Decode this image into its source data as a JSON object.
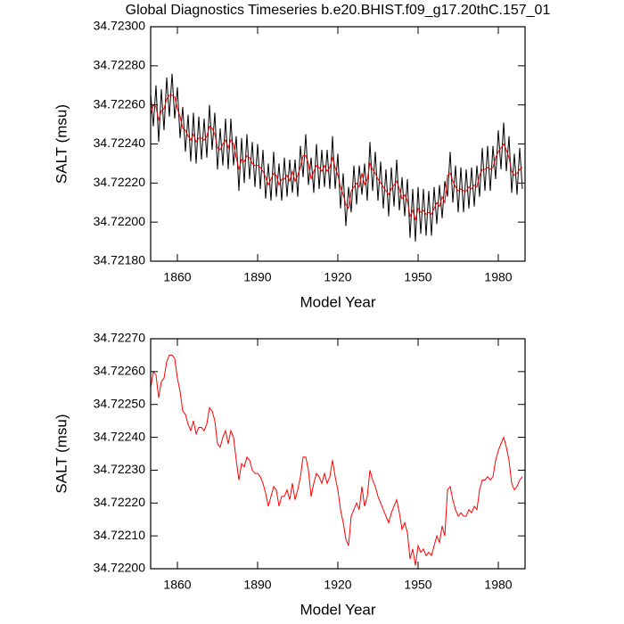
{
  "chart_data": [
    {
      "type": "line",
      "title": "Global Diagnostics Timeseries b.e20.BHIST.f09_g17.20thC.157_01",
      "xlabel": "Model Year",
      "ylabel": "SALT (msu)",
      "x": [
        1850,
        1851,
        1852,
        1853,
        1854,
        1855,
        1856,
        1857,
        1858,
        1859,
        1860,
        1861,
        1862,
        1863,
        1864,
        1865,
        1866,
        1867,
        1868,
        1869,
        1870,
        1871,
        1872,
        1873,
        1874,
        1875,
        1876,
        1877,
        1878,
        1879,
        1880,
        1881,
        1882,
        1883,
        1884,
        1885,
        1886,
        1887,
        1888,
        1889,
        1890,
        1891,
        1892,
        1893,
        1894,
        1895,
        1896,
        1897,
        1898,
        1899,
        1900,
        1901,
        1902,
        1903,
        1904,
        1905,
        1906,
        1907,
        1908,
        1909,
        1910,
        1911,
        1912,
        1913,
        1914,
        1915,
        1916,
        1917,
        1918,
        1919,
        1920,
        1921,
        1922,
        1923,
        1924,
        1925,
        1926,
        1927,
        1928,
        1929,
        1930,
        1931,
        1932,
        1933,
        1934,
        1935,
        1936,
        1937,
        1938,
        1939,
        1940,
        1941,
        1942,
        1943,
        1944,
        1945,
        1946,
        1947,
        1948,
        1949,
        1950,
        1951,
        1952,
        1953,
        1954,
        1955,
        1956,
        1957,
        1958,
        1959,
        1960,
        1961,
        1962,
        1963,
        1964,
        1965,
        1966,
        1967,
        1968,
        1969,
        1970,
        1971,
        1972,
        1973,
        1974,
        1975,
        1976,
        1977,
        1978,
        1979,
        1980,
        1981,
        1982,
        1983,
        1984,
        1985,
        1986,
        1987,
        1988,
        1989
      ],
      "series": [
        {
          "color": "#000000",
          "values": [
            34.72266,
            34.72249,
            34.7227,
            34.72241,
            34.72268,
            34.72247,
            34.72274,
            34.72254,
            34.72276,
            34.72253,
            34.72269,
            34.72243,
            34.72259,
            34.72236,
            34.72255,
            34.72231,
            34.72256,
            34.7223,
            34.72254,
            34.72232,
            34.72253,
            34.72233,
            34.7226,
            34.72237,
            34.72256,
            34.72227,
            34.72248,
            34.72229,
            34.72253,
            34.72227,
            34.72253,
            34.72229,
            34.72244,
            34.72216,
            34.72243,
            34.7222,
            34.72245,
            34.72222,
            34.72241,
            34.72218,
            34.7224,
            34.72217,
            34.72237,
            34.72212,
            34.7223,
            34.72211,
            34.72236,
            34.72213,
            34.7223,
            34.72211,
            34.72233,
            34.72213,
            34.72232,
            34.72215,
            34.72232,
            34.72213,
            34.72239,
            34.72223,
            34.72245,
            34.72219,
            34.72233,
            34.72215,
            34.7224,
            34.72217,
            34.72237,
            34.72218,
            34.72237,
            34.72217,
            34.72244,
            34.72217,
            34.72235,
            34.72207,
            34.72225,
            34.72198,
            34.72218,
            34.72205,
            34.72229,
            34.72209,
            34.72229,
            34.72214,
            34.7223,
            34.72211,
            34.72241,
            34.72216,
            34.72236,
            34.72211,
            34.72231,
            34.72207,
            34.72227,
            34.72203,
            34.72228,
            34.72208,
            34.72232,
            34.72206,
            34.72223,
            34.72203,
            34.72222,
            34.72192,
            34.72217,
            34.7219,
            34.72218,
            34.72194,
            34.72217,
            34.72193,
            34.72216,
            34.72193,
            34.72218,
            34.72199,
            34.72219,
            34.72202,
            34.72221,
            34.72213,
            34.72236,
            34.7221,
            34.72229,
            34.72205,
            34.72228,
            34.72205,
            34.72227,
            34.72207,
            34.72228,
            34.72208,
            34.72229,
            34.72213,
            34.72238,
            34.72216,
            34.72239,
            34.72216,
            34.72239,
            34.72222,
            34.72247,
            34.72227,
            34.72251,
            34.72226,
            34.72244,
            34.72215,
            34.72235,
            34.72214,
            34.72238,
            34.72217
          ]
        },
        {
          "color": "#ff0000",
          "values": [
            34.72255,
            34.7226,
            34.72259,
            34.72252,
            34.72257,
            34.72258,
            34.72263,
            34.72265,
            34.72265,
            34.72264,
            34.72258,
            34.72254,
            34.72248,
            34.72247,
            34.72244,
            34.72242,
            34.72245,
            34.72241,
            34.72243,
            34.72243,
            34.72242,
            34.72244,
            34.72249,
            34.72248,
            34.72245,
            34.72238,
            34.72237,
            34.7224,
            34.72242,
            34.72238,
            34.72242,
            34.7224,
            34.72233,
            34.72227,
            34.72232,
            34.72231,
            34.72234,
            34.72233,
            34.7223,
            34.72229,
            34.72229,
            34.72228,
            34.72226,
            34.72223,
            34.72219,
            34.72222,
            34.72225,
            34.72224,
            34.72219,
            34.72222,
            34.72222,
            34.72224,
            34.72221,
            34.72226,
            34.72221,
            34.72224,
            34.72228,
            34.72234,
            34.72234,
            34.7223,
            34.72222,
            34.72226,
            34.72229,
            34.72228,
            34.72226,
            34.72229,
            34.72226,
            34.72228,
            34.72233,
            34.72228,
            34.72224,
            34.72218,
            34.72214,
            34.72209,
            34.72207,
            34.72216,
            34.72218,
            34.7222,
            34.72218,
            34.72225,
            34.72219,
            34.72222,
            34.7223,
            34.72227,
            34.72225,
            34.72222,
            34.7222,
            34.72218,
            34.72216,
            34.72214,
            34.72217,
            34.72219,
            34.72221,
            34.72217,
            34.72212,
            34.72214,
            34.72211,
            34.72203,
            34.72206,
            34.72201,
            34.72207,
            34.72205,
            34.72206,
            34.72204,
            34.72205,
            34.72204,
            34.72207,
            34.7221,
            34.72208,
            34.72213,
            34.7221,
            34.72224,
            34.72225,
            34.72221,
            34.72218,
            34.72216,
            34.72217,
            34.72216,
            34.72216,
            34.72218,
            34.72217,
            34.72219,
            34.72218,
            34.72224,
            34.72227,
            34.72227,
            34.72228,
            34.72227,
            34.72228,
            34.72233,
            34.72236,
            34.72238,
            34.7224,
            34.72237,
            34.72233,
            34.72226,
            34.72224,
            34.72225,
            34.72227,
            34.72228
          ]
        }
      ],
      "xlim": [
        1850,
        1990
      ],
      "xticks": [
        1860,
        1890,
        1920,
        1950,
        1980
      ],
      "ylim": [
        34.7218,
        34.723
      ],
      "yticks": [
        {
          "value": 34.7218,
          "label": "34.72180"
        },
        {
          "value": 34.722,
          "label": "34.72200"
        },
        {
          "value": 34.7222,
          "label": "34.72220"
        },
        {
          "value": 34.7224,
          "label": "34.72240"
        },
        {
          "value": 34.7226,
          "label": "34.72260"
        },
        {
          "value": 34.7228,
          "label": "34.72280"
        },
        {
          "value": 34.723,
          "label": "34.72300"
        }
      ]
    },
    {
      "type": "line",
      "xlabel": "Model Year",
      "ylabel": "SALT (msu)",
      "x": [
        1850,
        1851,
        1852,
        1853,
        1854,
        1855,
        1856,
        1857,
        1858,
        1859,
        1860,
        1861,
        1862,
        1863,
        1864,
        1865,
        1866,
        1867,
        1868,
        1869,
        1870,
        1871,
        1872,
        1873,
        1874,
        1875,
        1876,
        1877,
        1878,
        1879,
        1880,
        1881,
        1882,
        1883,
        1884,
        1885,
        1886,
        1887,
        1888,
        1889,
        1890,
        1891,
        1892,
        1893,
        1894,
        1895,
        1896,
        1897,
        1898,
        1899,
        1900,
        1901,
        1902,
        1903,
        1904,
        1905,
        1906,
        1907,
        1908,
        1909,
        1910,
        1911,
        1912,
        1913,
        1914,
        1915,
        1916,
        1917,
        1918,
        1919,
        1920,
        1921,
        1922,
        1923,
        1924,
        1925,
        1926,
        1927,
        1928,
        1929,
        1930,
        1931,
        1932,
        1933,
        1934,
        1935,
        1936,
        1937,
        1938,
        1939,
        1940,
        1941,
        1942,
        1943,
        1944,
        1945,
        1946,
        1947,
        1948,
        1949,
        1950,
        1951,
        1952,
        1953,
        1954,
        1955,
        1956,
        1957,
        1958,
        1959,
        1960,
        1961,
        1962,
        1963,
        1964,
        1965,
        1966,
        1967,
        1968,
        1969,
        1970,
        1971,
        1972,
        1973,
        1974,
        1975,
        1976,
        1977,
        1978,
        1979,
        1980,
        1981,
        1982,
        1983,
        1984,
        1985,
        1986,
        1987,
        1988,
        1989
      ],
      "series": [
        {
          "color": "#ff0000",
          "values": [
            34.72255,
            34.7226,
            34.72259,
            34.72252,
            34.72257,
            34.72258,
            34.72263,
            34.72265,
            34.72265,
            34.72264,
            34.72258,
            34.72254,
            34.72248,
            34.72247,
            34.72244,
            34.72242,
            34.72245,
            34.72241,
            34.72243,
            34.72243,
            34.72242,
            34.72244,
            34.72249,
            34.72248,
            34.72245,
            34.72238,
            34.72237,
            34.7224,
            34.72242,
            34.72238,
            34.72242,
            34.7224,
            34.72233,
            34.72227,
            34.72232,
            34.72231,
            34.72234,
            34.72233,
            34.7223,
            34.72229,
            34.72229,
            34.72228,
            34.72226,
            34.72223,
            34.72219,
            34.72222,
            34.72225,
            34.72224,
            34.72219,
            34.72222,
            34.72222,
            34.72224,
            34.72221,
            34.72226,
            34.72221,
            34.72224,
            34.72228,
            34.72234,
            34.72234,
            34.7223,
            34.72222,
            34.72226,
            34.72229,
            34.72228,
            34.72226,
            34.72229,
            34.72226,
            34.72228,
            34.72233,
            34.72228,
            34.72224,
            34.72218,
            34.72214,
            34.72209,
            34.72207,
            34.72216,
            34.72218,
            34.7222,
            34.72218,
            34.72225,
            34.72219,
            34.72222,
            34.7223,
            34.72227,
            34.72225,
            34.72222,
            34.7222,
            34.72218,
            34.72216,
            34.72214,
            34.72217,
            34.72219,
            34.72221,
            34.72217,
            34.72212,
            34.72214,
            34.72211,
            34.72203,
            34.72206,
            34.72201,
            34.72207,
            34.72205,
            34.72206,
            34.72204,
            34.72205,
            34.72204,
            34.72207,
            34.7221,
            34.72208,
            34.72213,
            34.7221,
            34.72224,
            34.72225,
            34.72221,
            34.72218,
            34.72216,
            34.72217,
            34.72216,
            34.72216,
            34.72218,
            34.72217,
            34.72219,
            34.72218,
            34.72224,
            34.72227,
            34.72227,
            34.72228,
            34.72227,
            34.72228,
            34.72233,
            34.72236,
            34.72238,
            34.7224,
            34.72237,
            34.72233,
            34.72226,
            34.72224,
            34.72225,
            34.72227,
            34.72228
          ]
        }
      ],
      "xlim": [
        1850,
        1990
      ],
      "xticks": [
        1860,
        1890,
        1920,
        1950,
        1980
      ],
      "ylim": [
        34.722,
        34.7227
      ],
      "yticks": [
        {
          "value": 34.722,
          "label": "34.72200"
        },
        {
          "value": 34.7221,
          "label": "34.72210"
        },
        {
          "value": 34.7222,
          "label": "34.72220"
        },
        {
          "value": 34.7223,
          "label": "34.72230"
        },
        {
          "value": 34.7224,
          "label": "34.72240"
        },
        {
          "value": 34.7225,
          "label": "34.72250"
        },
        {
          "value": 34.7226,
          "label": "34.72260"
        },
        {
          "value": 34.7227,
          "label": "34.72270"
        }
      ]
    }
  ]
}
